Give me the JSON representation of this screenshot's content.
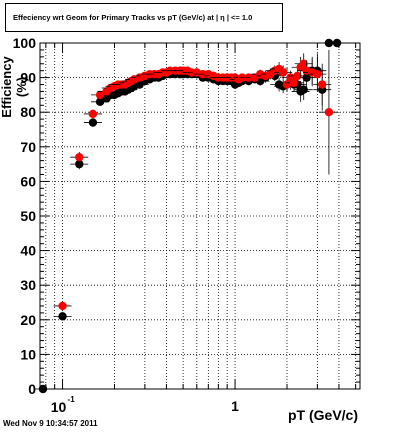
{
  "chart_data": {
    "type": "scatter",
    "title": "Effeciency wrt Geom for Primary Tracks vs pT (GeV/c) at | η | <= 1.0",
    "xlabel": "pT (GeV/c)",
    "ylabel": "Efficiency (%)",
    "x_scale": "log",
    "xlim": [
      0.074,
      5.3
    ],
    "ylim": [
      0,
      100
    ],
    "grid": true,
    "yticks": [
      "0",
      "10",
      "20",
      "30",
      "40",
      "50",
      "60",
      "70",
      "80",
      "90",
      "100"
    ],
    "xtick_labels": [
      {
        "value": 0.1,
        "base": "10",
        "exp": "-1"
      },
      {
        "value": 1,
        "text": "1"
      }
    ],
    "series": [
      {
        "color": "#000000",
        "x": [
          0.077,
          0.1,
          0.125,
          0.15,
          0.165,
          0.18,
          0.19,
          0.2,
          0.21,
          0.22,
          0.23,
          0.24,
          0.25,
          0.26,
          0.28,
          0.3,
          0.32,
          0.34,
          0.36,
          0.38,
          0.4,
          0.42,
          0.45,
          0.48,
          0.5,
          0.53,
          0.56,
          0.6,
          0.65,
          0.7,
          0.75,
          0.8,
          0.85,
          0.9,
          0.95,
          1.0,
          1.05,
          1.1,
          1.2,
          1.3,
          1.4,
          1.5,
          1.6,
          1.7,
          1.8,
          1.9,
          2.0,
          2.1,
          2.2,
          2.3,
          2.4,
          2.5,
          2.6,
          2.8,
          3.0,
          3.2,
          3.5,
          3.9
        ],
        "y": [
          0,
          21,
          65,
          77,
          83,
          84,
          85,
          85,
          85.5,
          86,
          86,
          86.5,
          87,
          87.5,
          88,
          89,
          89.5,
          90,
          90,
          90.5,
          91,
          91,
          91,
          91,
          91,
          91,
          91,
          91,
          90,
          90,
          89.5,
          89,
          89,
          89,
          89,
          88,
          88.5,
          89,
          89,
          89.5,
          89,
          90,
          91,
          90.5,
          88,
          87.5,
          88,
          88.5,
          88,
          88,
          86,
          86.5,
          90,
          92,
          92,
          86.5,
          100,
          100
        ],
        "yerr": [
          0.5,
          1.2,
          1.5,
          1.2,
          1,
          1,
          1,
          1,
          0.8,
          0.8,
          0.8,
          0.8,
          0.8,
          0.8,
          0.8,
          0.7,
          0.7,
          0.7,
          0.7,
          0.7,
          0.7,
          0.7,
          0.7,
          0.7,
          0.7,
          0.7,
          0.7,
          0.7,
          0.8,
          0.8,
          0.8,
          0.8,
          1,
          1,
          1,
          1,
          1,
          1,
          1.2,
          1.2,
          1.3,
          1.5,
          1.5,
          1.5,
          2,
          2,
          2,
          2,
          2,
          2.5,
          3,
          3,
          3,
          4,
          5,
          6,
          0,
          0
        ]
      },
      {
        "color": "#ff0000",
        "x": [
          0.1,
          0.125,
          0.15,
          0.165,
          0.18,
          0.19,
          0.2,
          0.21,
          0.22,
          0.23,
          0.24,
          0.25,
          0.26,
          0.28,
          0.3,
          0.32,
          0.34,
          0.36,
          0.38,
          0.4,
          0.42,
          0.45,
          0.48,
          0.5,
          0.53,
          0.56,
          0.6,
          0.65,
          0.7,
          0.75,
          0.8,
          0.85,
          0.9,
          0.95,
          1.0,
          1.05,
          1.1,
          1.2,
          1.3,
          1.4,
          1.5,
          1.6,
          1.7,
          1.8,
          1.9,
          2.0,
          2.1,
          2.2,
          2.3,
          2.4,
          2.5,
          2.6,
          2.8,
          3.0,
          3.2,
          3.5
        ],
        "y": [
          24,
          67,
          79.5,
          85,
          86,
          87,
          87.5,
          88,
          88,
          88,
          88.5,
          89,
          89.5,
          90,
          90.5,
          91,
          91,
          91,
          91.5,
          91.5,
          92,
          92,
          92,
          92,
          92,
          91.5,
          91.5,
          91,
          91,
          90.5,
          90,
          90,
          90,
          90,
          90,
          89.5,
          90,
          90,
          90,
          91,
          90.5,
          91,
          92,
          92.5,
          91.5,
          88,
          90,
          88.5,
          90.5,
          93,
          94,
          92,
          91.5,
          91,
          88,
          80
        ],
        "yerr": [
          1,
          1.5,
          1.2,
          1,
          1,
          1,
          0.8,
          0.8,
          0.8,
          0.8,
          0.8,
          0.7,
          0.7,
          0.7,
          0.7,
          0.7,
          0.7,
          0.7,
          0.7,
          0.7,
          0.7,
          0.7,
          0.7,
          0.7,
          0.7,
          0.7,
          0.7,
          0.8,
          0.8,
          0.8,
          0.8,
          1,
          1,
          1,
          1,
          1,
          1,
          1.2,
          1.2,
          1.3,
          1.5,
          1.5,
          1.5,
          2,
          2,
          2,
          2,
          2.5,
          2.5,
          3,
          3,
          3,
          4,
          5,
          6,
          18
        ]
      }
    ]
  },
  "timestamp": "Wed Nov  9 10:34:57 2011"
}
